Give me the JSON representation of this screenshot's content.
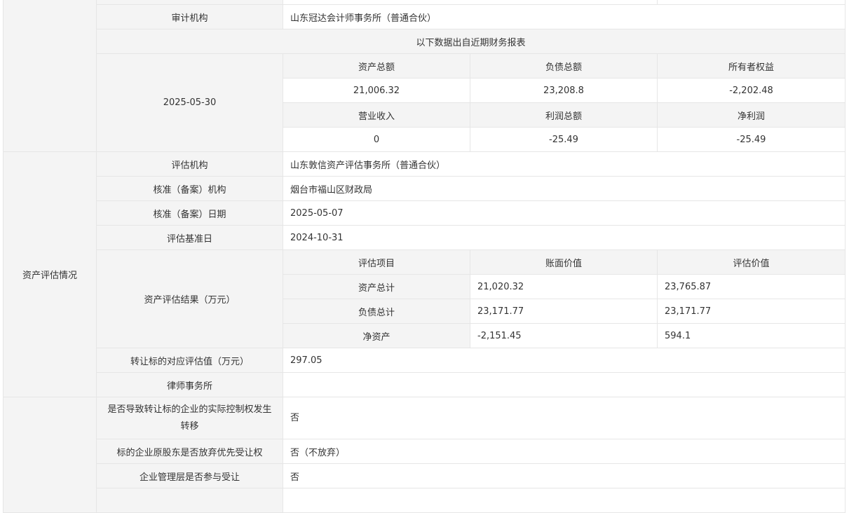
{
  "audit": {
    "label": "审计机构",
    "value": "山东冠达会计师事务所（普通合伙）"
  },
  "financial": {
    "caption": "以下数据出自近期财务报表",
    "date": "2025-05-30",
    "headers1": [
      "资产总额",
      "负债总额",
      "所有者权益"
    ],
    "values1": [
      "21,006.32",
      "23,208.8",
      "-2,202.48"
    ],
    "headers2": [
      "营业收入",
      "利润总额",
      "净利润"
    ],
    "values2": [
      "0",
      "-25.49",
      "-25.49"
    ]
  },
  "assessment": {
    "section_label": "资产评估情况",
    "rows": [
      {
        "label": "评估机构",
        "value": "山东敦信资产评估事务所（普通合伙）"
      },
      {
        "label": "核准（备案）机构",
        "value": "烟台市福山区财政局"
      },
      {
        "label": "核准（备案）日期",
        "value": "2025-05-07"
      },
      {
        "label": "评估基准日",
        "value": "2024-10-31"
      }
    ],
    "result_label": "资产评估结果（万元）",
    "result_headers": [
      "评估项目",
      "账面价值",
      "评估价值"
    ],
    "results": [
      {
        "item": "资产总计",
        "book": "21,020.32",
        "assessed": "23,765.87"
      },
      {
        "item": "负债总计",
        "book": "23,171.77",
        "assessed": "23,171.77"
      },
      {
        "item": "净资产",
        "book": "-2,151.45",
        "assessed": "594.1"
      }
    ],
    "target_value": {
      "label": "转让标的对应评估值（万元）",
      "value": "297.05"
    },
    "law_firm": {
      "label": "律师事务所",
      "value": ""
    }
  },
  "other": [
    {
      "label": "是否导致转让标的企业的实际控制权发生转移",
      "value": "否"
    },
    {
      "label": "标的企业原股东是否放弃优先受让权",
      "value": "否（不放弃）"
    },
    {
      "label": "企业管理层是否参与受让",
      "value": "否"
    }
  ]
}
